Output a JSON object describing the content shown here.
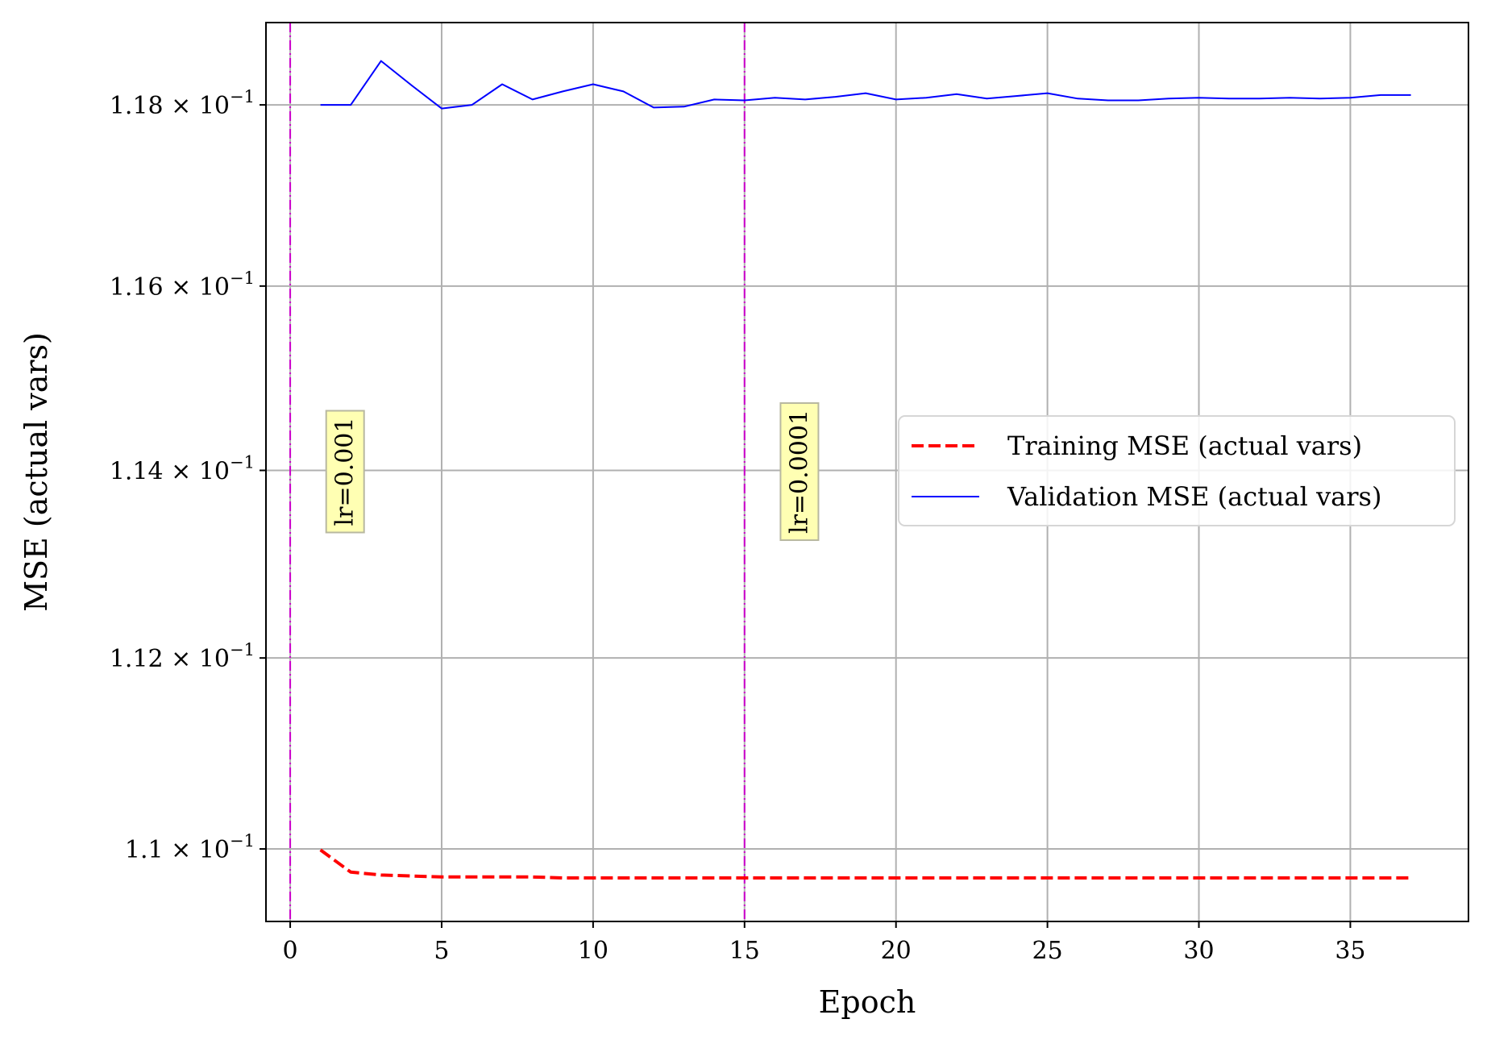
{
  "chart_data": {
    "type": "line",
    "xlabel": "Epoch",
    "ylabel": "MSE (actual vars)",
    "xlim": [
      -0.8,
      38.9
    ],
    "ylim": [
      0.10925,
      0.11892
    ],
    "yscale": "log",
    "grid": true,
    "legend_position": "center-right",
    "x_ticks": [
      0,
      5,
      10,
      15,
      20,
      25,
      30,
      35
    ],
    "y_ticks": [
      {
        "value": 0.11,
        "mantissa": "1.1"
      },
      {
        "value": 0.112,
        "mantissa": "1.12"
      },
      {
        "value": 0.114,
        "mantissa": "1.14"
      },
      {
        "value": 0.116,
        "mantissa": "1.16"
      },
      {
        "value": 0.118,
        "mantissa": "1.18"
      }
    ],
    "y_tick_suffix": "× 10",
    "y_tick_exponent": "−1",
    "series": [
      {
        "name": "Training MSE (actual vars)",
        "color": "#ff0000",
        "style": "dashed",
        "x": [
          1,
          2,
          3,
          4,
          5,
          6,
          7,
          8,
          9,
          10,
          11,
          12,
          13,
          14,
          15,
          16,
          17,
          18,
          19,
          20,
          21,
          22,
          23,
          24,
          25,
          26,
          27,
          28,
          29,
          30,
          31,
          32,
          33,
          34,
          35,
          36,
          37
        ],
        "values": [
          0.10999,
          0.10976,
          0.10973,
          0.10972,
          0.10971,
          0.10971,
          0.10971,
          0.10971,
          0.1097,
          0.1097,
          0.1097,
          0.1097,
          0.1097,
          0.1097,
          0.1097,
          0.1097,
          0.1097,
          0.1097,
          0.1097,
          0.1097,
          0.1097,
          0.1097,
          0.1097,
          0.1097,
          0.1097,
          0.1097,
          0.1097,
          0.1097,
          0.1097,
          0.1097,
          0.1097,
          0.1097,
          0.1097,
          0.1097,
          0.1097,
          0.1097,
          0.1097
        ]
      },
      {
        "name": "Validation MSE (actual vars)",
        "color": "#0000ff",
        "style": "solid",
        "x": [
          1,
          2,
          3,
          4,
          5,
          6,
          7,
          8,
          9,
          10,
          11,
          12,
          13,
          14,
          15,
          16,
          17,
          18,
          19,
          20,
          21,
          22,
          23,
          24,
          25,
          26,
          27,
          28,
          29,
          30,
          31,
          32,
          33,
          34,
          35,
          36,
          37
        ],
        "values": [
          0.118,
          0.118,
          0.11849,
          0.11822,
          0.11796,
          0.118,
          0.11823,
          0.11806,
          0.11815,
          0.11823,
          0.11815,
          0.11797,
          0.11798,
          0.11806,
          0.11805,
          0.11808,
          0.11806,
          0.11809,
          0.11813,
          0.11806,
          0.11808,
          0.11812,
          0.11807,
          0.1181,
          0.11813,
          0.11807,
          0.11805,
          0.11805,
          0.11807,
          0.11808,
          0.11807,
          0.11807,
          0.11808,
          0.11807,
          0.11808,
          0.11811,
          0.11811
        ]
      }
    ],
    "vlines": [
      {
        "x": 0,
        "color": "#cc00cc",
        "label": "lr=0.001",
        "label_x": 1.8
      },
      {
        "x": 15,
        "color": "#cc00cc",
        "label": "lr=0.0001",
        "label_x": 16.8
      }
    ]
  }
}
